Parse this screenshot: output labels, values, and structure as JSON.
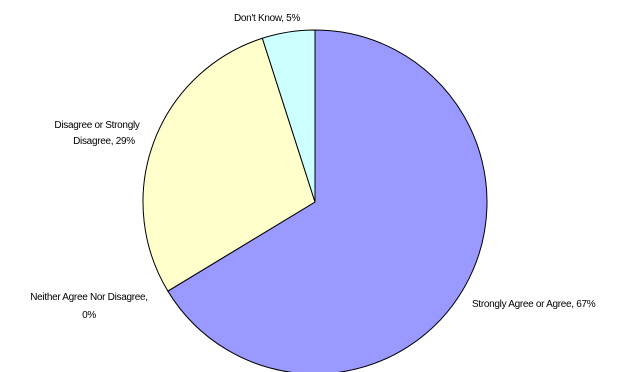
{
  "chart_data": {
    "type": "pie",
    "title": "",
    "start_angle_deg": 0,
    "direction": "clockwise",
    "slice_order": [
      "Strongly Agree or Agree",
      "Neither Agree Nor Disagree",
      "Disagree or Strongly Disagree",
      "Don't Know"
    ],
    "slices": [
      {
        "label": "Strongly Agree or Agree",
        "value": 67,
        "data_label": "Strongly Agree or Agree, 67%",
        "color": "#9999ff"
      },
      {
        "label": "Neither Agree Nor Disagree",
        "value": 0,
        "data_label_lines": [
          "Neither Agree Nor Disagree,",
          "0%"
        ],
        "color": "#993366"
      },
      {
        "label": "Disagree or Strongly Disagree",
        "value": 29,
        "data_label_lines": [
          "Disagree or Strongly",
          "Disagree, 29%"
        ],
        "color": "#ffffcc"
      },
      {
        "label": "Don't Know",
        "value": 5,
        "data_label": "Don't Know, 5%",
        "color": "#ccffff"
      }
    ]
  }
}
